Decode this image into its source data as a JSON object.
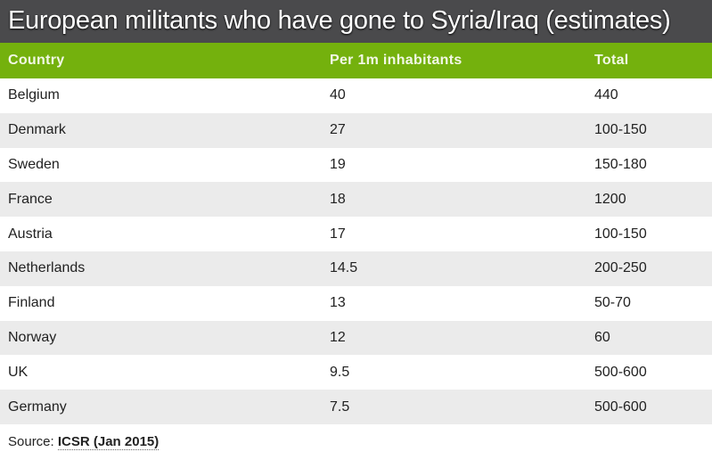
{
  "chart_data": {
    "type": "table",
    "title": "European militants who have gone to Syria/Iraq (estimates)",
    "columns": [
      "Country",
      "Per 1m inhabitants",
      "Total"
    ],
    "rows": [
      [
        "Belgium",
        "40",
        "440"
      ],
      [
        "Denmark",
        "27",
        "100-150"
      ],
      [
        "Sweden",
        "19",
        "150-180"
      ],
      [
        "France",
        "18",
        "1200"
      ],
      [
        "Austria",
        "17",
        "100-150"
      ],
      [
        "Netherlands",
        "14.5",
        "200-250"
      ],
      [
        "Finland",
        "13",
        "50-70"
      ],
      [
        "Norway",
        "12",
        "60"
      ],
      [
        "UK",
        "9.5",
        "500-600"
      ],
      [
        "Germany",
        "7.5",
        "500-600"
      ]
    ],
    "source_label": "Source:",
    "source": "ICSR (Jan 2015)"
  },
  "colors": {
    "title_bg": "#4a4a4c",
    "header_bg": "#74b10d",
    "alt_row": "#ebebeb"
  }
}
